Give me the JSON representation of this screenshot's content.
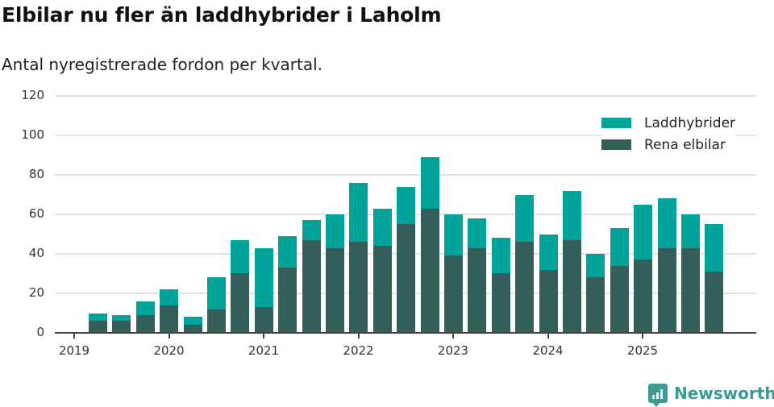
{
  "title": "Elbilar nu fler än laddhybrider i Laholm",
  "subtitle": "Antal nyregistrerade fordon per kvartal.",
  "legend": [
    {
      "label": "Laddhybrider",
      "color": "#00a39a"
    },
    {
      "label": "Rena elbilar",
      "color": "#335e5a"
    }
  ],
  "brand": "Newsworthy",
  "chart_data": {
    "type": "bar",
    "stacked": true,
    "title": "Elbilar nu fler än laddhybrider i Laholm",
    "subtitle": "Antal nyregistrerade fordon per kvartal.",
    "xlabel": "",
    "ylabel": "",
    "ylim": [
      0,
      120
    ],
    "yticks": [
      0,
      20,
      40,
      60,
      80,
      100,
      120
    ],
    "xticks": [
      "2019",
      "2020",
      "2021",
      "2022",
      "2023",
      "2024",
      "2025"
    ],
    "grid": true,
    "legend_position": "top-right",
    "categories": [
      "2019 Q2",
      "2019 Q3",
      "2019 Q4",
      "2020 Q1",
      "2020 Q2",
      "2020 Q3",
      "2020 Q4",
      "2021 Q1",
      "2021 Q2",
      "2021 Q3",
      "2021 Q4",
      "2022 Q1",
      "2022 Q2",
      "2022 Q3",
      "2022 Q4",
      "2023 Q1",
      "2023 Q2",
      "2023 Q3",
      "2023 Q4",
      "2024 Q1",
      "2024 Q2",
      "2024 Q3",
      "2024 Q4",
      "2025 Q1",
      "2025 Q2",
      "2025 Q3",
      "2025 Q4"
    ],
    "series": [
      {
        "name": "Rena elbilar",
        "color": "#335e5a",
        "values": [
          6,
          6,
          9,
          14,
          4,
          12,
          30,
          13,
          33,
          47,
          43,
          46,
          44,
          55,
          63,
          39,
          43,
          30,
          46,
          32,
          47,
          28,
          34,
          37,
          43,
          43,
          31
        ]
      },
      {
        "name": "Laddhybrider",
        "color": "#00a39a",
        "values": [
          4,
          3,
          7,
          8,
          4,
          16,
          17,
          30,
          16,
          10,
          17,
          30,
          19,
          19,
          26,
          21,
          15,
          18,
          24,
          18,
          25,
          12,
          19,
          28,
          25,
          17,
          24
        ]
      }
    ]
  }
}
